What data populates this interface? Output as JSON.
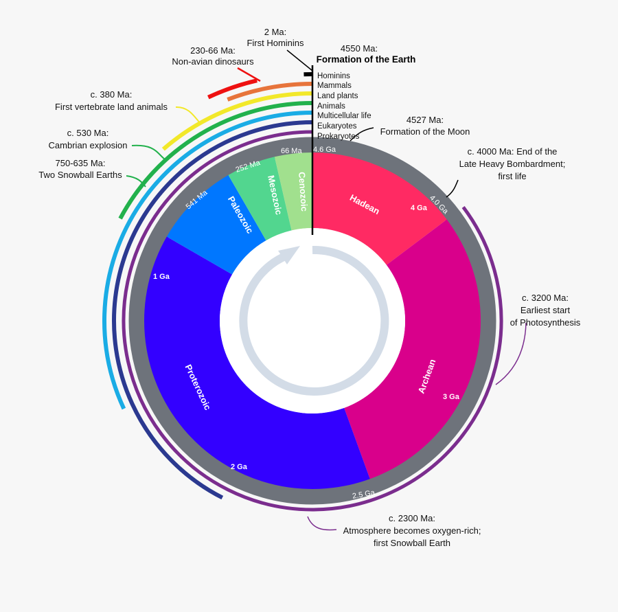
{
  "eons": [
    {
      "name": "Hadean",
      "start_ga": 4.6,
      "end_ga": 4.0,
      "color": "#ff2a63"
    },
    {
      "name": "Archean",
      "start_ga": 4.0,
      "end_ga": 2.5,
      "color": "#d9008b"
    },
    {
      "name": "Proterozoic",
      "start_ga": 2.5,
      "end_ga": 0.541,
      "color": "#3300ff"
    },
    {
      "name": "Paleozoic",
      "start_ga": 0.541,
      "end_ga": 0.252,
      "color": "#0077ff"
    },
    {
      "name": "Mesozoic",
      "start_ga": 0.252,
      "end_ga": 0.066,
      "color": "#52d68f"
    },
    {
      "name": "Cenozoic",
      "start_ga": 0.066,
      "end_ga": 0.0,
      "color": "#a1e08e"
    }
  ],
  "outer_ticks": [
    "4.6 Ga",
    "4.0 Ga",
    "2.5 Ga",
    "541 Ma",
    "252 Ma",
    "66 Ma"
  ],
  "inner_ga_labels": [
    "4 Ga",
    "3 Ga",
    "2 Ga",
    "1 Ga"
  ],
  "life_rings": [
    {
      "name": "Prokaryotes",
      "color": "#7b2d8e"
    },
    {
      "name": "Eukaryotes",
      "color": "#2b3990"
    },
    {
      "name": "Multicellular life",
      "color": "#1aace5"
    },
    {
      "name": "Animals",
      "color": "#22b14c"
    },
    {
      "name": "Land plants",
      "color": "#f2e82a"
    },
    {
      "name": "Mammals",
      "color": "#e7743b"
    },
    {
      "name": "Hominins",
      "color": "#000000"
    }
  ],
  "dinosaur_color": "#ee1111",
  "title": "Formation of the Earth",
  "title_date": "4550 Ma:",
  "annotations": {
    "hominins": [
      "2 Ma:",
      "First Hominins"
    ],
    "dinosaurs": [
      "230-66 Ma:",
      "Non-avian dinosaurs"
    ],
    "land_animals": [
      "c. 380 Ma:",
      "First vertebrate land animals"
    ],
    "cambrian": [
      "c. 530 Ma:",
      "Cambrian explosion"
    ],
    "snowball": [
      "750-635 Ma:",
      "Two Snowball Earths"
    ],
    "moon": [
      "4527 Ma:",
      "Formation of the Moon"
    ],
    "bombardment": [
      "c. 4000 Ma: End of the",
      "Late Heavy Bombardment;",
      "first life"
    ],
    "photosynthesis": [
      "c. 3200 Ma:",
      "Earliest start",
      "of Photosynthesis"
    ],
    "oxygen": [
      "c. 2300 Ma:",
      "Atmosphere becomes oxygen-rich;",
      "first Snowball Earth"
    ]
  }
}
